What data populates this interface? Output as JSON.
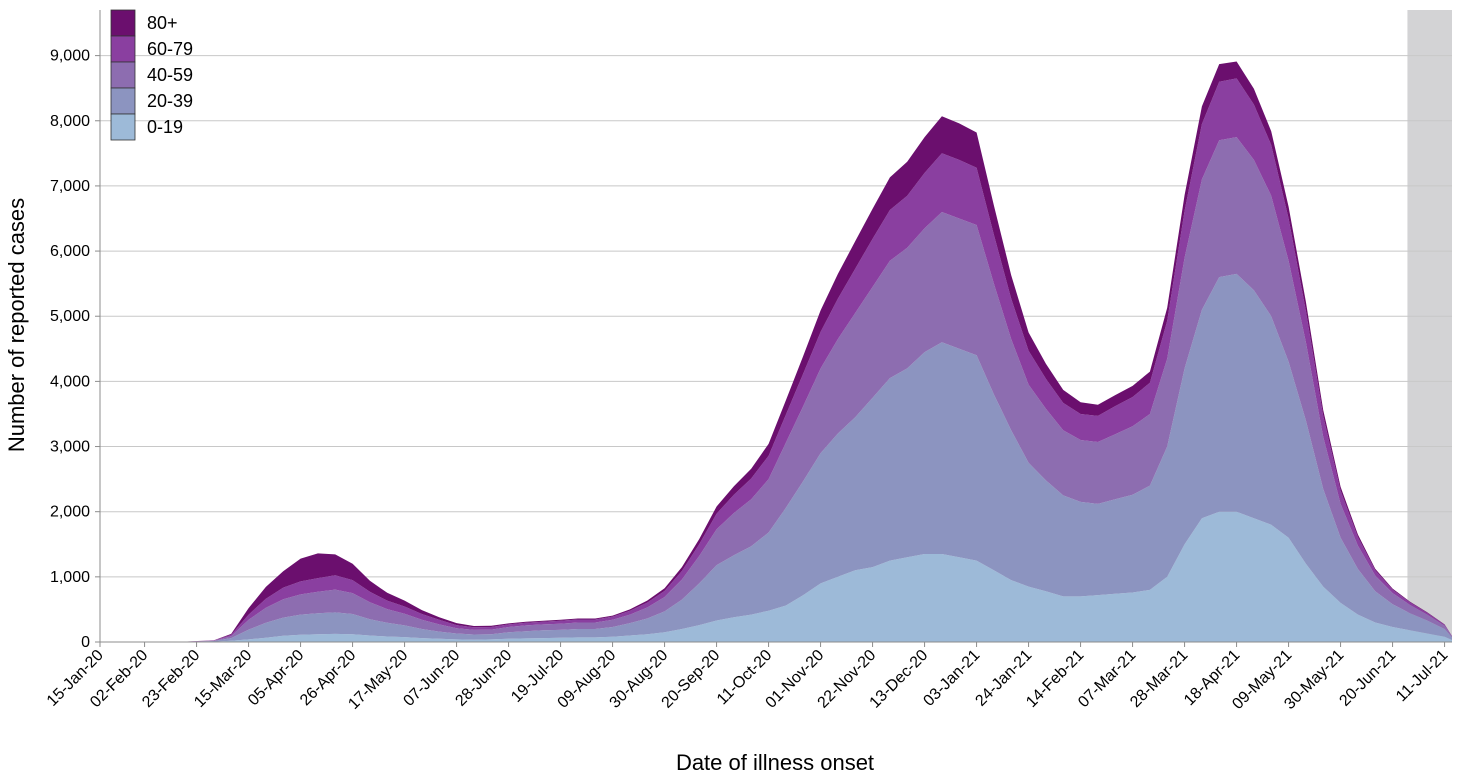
{
  "chart_data": {
    "type": "area",
    "stacked": true,
    "title": "",
    "xlabel": "Date of illness onset",
    "ylabel": "Number of reported cases",
    "ylim": [
      0,
      9700
    ],
    "yticks": [
      0,
      1000,
      2000,
      3000,
      4000,
      5000,
      6000,
      7000,
      8000,
      9000
    ],
    "ytick_labels": [
      "0",
      "1,000",
      "2,000",
      "3,000",
      "4,000",
      "5,000",
      "6,000",
      "7,000",
      "8,000",
      "9,000"
    ],
    "x_start": "15-Jan-20",
    "x_end": "14-Jul-21",
    "xtick_labels": [
      "15-Jan-20",
      "02-Feb-20",
      "23-Feb-20",
      "15-Mar-20",
      "05-Apr-20",
      "26-Apr-20",
      "17-May-20",
      "07-Jun-20",
      "28-Jun-20",
      "19-Jul-20",
      "09-Aug-20",
      "30-Aug-20",
      "20-Sep-20",
      "11-Oct-20",
      "01-Nov-20",
      "22-Nov-20",
      "13-Dec-20",
      "03-Jan-21",
      "24-Jan-21",
      "14-Feb-21",
      "07-Mar-21",
      "28-Mar-21",
      "18-Apr-21",
      "09-May-21",
      "30-May-21",
      "20-Jun-21",
      "11-Jul-21"
    ],
    "shaded_region": {
      "from": "26-Jun-21",
      "to": "14-Jul-21",
      "color": "#d3d3d5"
    },
    "grid": "horizontal",
    "legend_position": "top-left",
    "x": [
      "15-Jan-20",
      "15-Feb-20",
      "01-Mar-20",
      "08-Mar-20",
      "15-Mar-20",
      "22-Mar-20",
      "29-Mar-20",
      "05-Apr-20",
      "12-Apr-20",
      "19-Apr-20",
      "26-Apr-20",
      "03-May-20",
      "10-May-20",
      "17-May-20",
      "24-May-20",
      "31-May-20",
      "07-Jun-20",
      "14-Jun-20",
      "21-Jun-20",
      "28-Jun-20",
      "05-Jul-20",
      "12-Jul-20",
      "19-Jul-20",
      "26-Jul-20",
      "02-Aug-20",
      "09-Aug-20",
      "16-Aug-20",
      "23-Aug-20",
      "30-Aug-20",
      "06-Sep-20",
      "13-Sep-20",
      "20-Sep-20",
      "27-Sep-20",
      "04-Oct-20",
      "11-Oct-20",
      "18-Oct-20",
      "25-Oct-20",
      "01-Nov-20",
      "08-Nov-20",
      "15-Nov-20",
      "22-Nov-20",
      "29-Nov-20",
      "06-Dec-20",
      "13-Dec-20",
      "20-Dec-20",
      "27-Dec-20",
      "03-Jan-21",
      "10-Jan-21",
      "17-Jan-21",
      "24-Jan-21",
      "31-Jan-21",
      "07-Feb-21",
      "14-Feb-21",
      "21-Feb-21",
      "28-Feb-21",
      "07-Mar-21",
      "14-Mar-21",
      "21-Mar-21",
      "28-Mar-21",
      "04-Apr-21",
      "11-Apr-21",
      "18-Apr-21",
      "25-Apr-21",
      "02-May-21",
      "09-May-21",
      "16-May-21",
      "23-May-21",
      "30-May-21",
      "06-Jun-21",
      "13-Jun-21",
      "20-Jun-21",
      "27-Jun-21",
      "04-Jul-21",
      "11-Jul-21",
      "14-Jul-21"
    ],
    "series": [
      {
        "name": "0-19",
        "color": "#9dbad8",
        "values": [
          0,
          0,
          5,
          20,
          40,
          65,
          95,
          110,
          120,
          125,
          120,
          100,
          85,
          75,
          60,
          50,
          40,
          35,
          40,
          50,
          55,
          60,
          65,
          70,
          70,
          80,
          100,
          120,
          150,
          200,
          260,
          330,
          380,
          420,
          480,
          560,
          720,
          900,
          1000,
          1100,
          1150,
          1250,
          1300,
          1350,
          1350,
          1300,
          1250,
          1100,
          950,
          850,
          780,
          700,
          700,
          720,
          740,
          760,
          800,
          1000,
          1500,
          1900,
          2000,
          2000,
          1900,
          1800,
          1600,
          1200,
          850,
          600,
          420,
          300,
          230,
          180,
          130,
          80,
          30
        ]
      },
      {
        "name": "20-39",
        "color": "#8c94c0",
        "values": [
          0,
          0,
          10,
          40,
          150,
          230,
          280,
          310,
          320,
          330,
          310,
          250,
          210,
          180,
          140,
          110,
          90,
          80,
          80,
          100,
          110,
          120,
          120,
          130,
          130,
          150,
          190,
          240,
          320,
          450,
          640,
          850,
          950,
          1050,
          1200,
          1500,
          1750,
          2000,
          2200,
          2350,
          2600,
          2800,
          2900,
          3100,
          3250,
          3200,
          3150,
          2700,
          2300,
          1900,
          1700,
          1550,
          1450,
          1400,
          1450,
          1500,
          1600,
          2000,
          2700,
          3200,
          3600,
          3650,
          3500,
          3200,
          2700,
          2200,
          1500,
          1000,
          700,
          480,
          350,
          260,
          200,
          120,
          40
        ]
      },
      {
        "name": "40-59",
        "color": "#8d6db0",
        "values": [
          0,
          0,
          5,
          30,
          150,
          230,
          280,
          310,
          330,
          350,
          320,
          260,
          210,
          180,
          140,
          110,
          80,
          70,
          70,
          80,
          90,
          90,
          95,
          100,
          100,
          110,
          130,
          170,
          220,
          310,
          420,
          550,
          650,
          720,
          820,
          1000,
          1150,
          1300,
          1450,
          1600,
          1700,
          1800,
          1850,
          1900,
          2000,
          2000,
          2000,
          1700,
          1400,
          1200,
          1100,
          1000,
          950,
          950,
          1000,
          1050,
          1100,
          1350,
          1700,
          2000,
          2100,
          2100,
          2000,
          1850,
          1550,
          1200,
          800,
          520,
          360,
          240,
          170,
          130,
          90,
          50,
          15
        ]
      },
      {
        "name": "60-79",
        "color": "#8a3fa0",
        "values": [
          0,
          0,
          5,
          20,
          80,
          140,
          180,
          200,
          210,
          220,
          200,
          160,
          130,
          110,
          90,
          70,
          50,
          40,
          40,
          40,
          40,
          40,
          45,
          45,
          45,
          50,
          60,
          75,
          95,
          130,
          180,
          240,
          280,
          320,
          360,
          430,
          500,
          560,
          620,
          680,
          740,
          780,
          800,
          850,
          900,
          900,
          880,
          750,
          620,
          520,
          460,
          420,
          400,
          400,
          430,
          450,
          480,
          580,
          720,
          850,
          900,
          900,
          850,
          780,
          650,
          480,
          320,
          200,
          130,
          80,
          55,
          40,
          30,
          15,
          5
        ]
      },
      {
        "name": "80+",
        "color": "#6b0f6e",
        "values": [
          0,
          0,
          3,
          15,
          100,
          180,
          250,
          350,
          380,
          320,
          250,
          170,
          120,
          90,
          60,
          40,
          30,
          20,
          20,
          15,
          15,
          15,
          15,
          15,
          15,
          15,
          20,
          30,
          40,
          60,
          80,
          110,
          130,
          150,
          180,
          220,
          270,
          330,
          380,
          420,
          460,
          500,
          520,
          550,
          570,
          560,
          540,
          450,
          360,
          280,
          230,
          200,
          180,
          170,
          170,
          170,
          170,
          200,
          240,
          270,
          270,
          260,
          240,
          210,
          180,
          140,
          90,
          60,
          40,
          25,
          15,
          10,
          8,
          5,
          2
        ]
      }
    ]
  },
  "legend": {
    "items": [
      {
        "label": "80+",
        "color": "#6b0f6e"
      },
      {
        "label": "60-79",
        "color": "#8a3fa0"
      },
      {
        "label": "40-59",
        "color": "#8d6db0"
      },
      {
        "label": "20-39",
        "color": "#8c94c0"
      },
      {
        "label": "0-19",
        "color": "#9dbad8"
      }
    ]
  },
  "colors": {
    "grid": "#c8c8c8",
    "axis": "#8c8c8c",
    "shade": "#d3d3d5"
  }
}
